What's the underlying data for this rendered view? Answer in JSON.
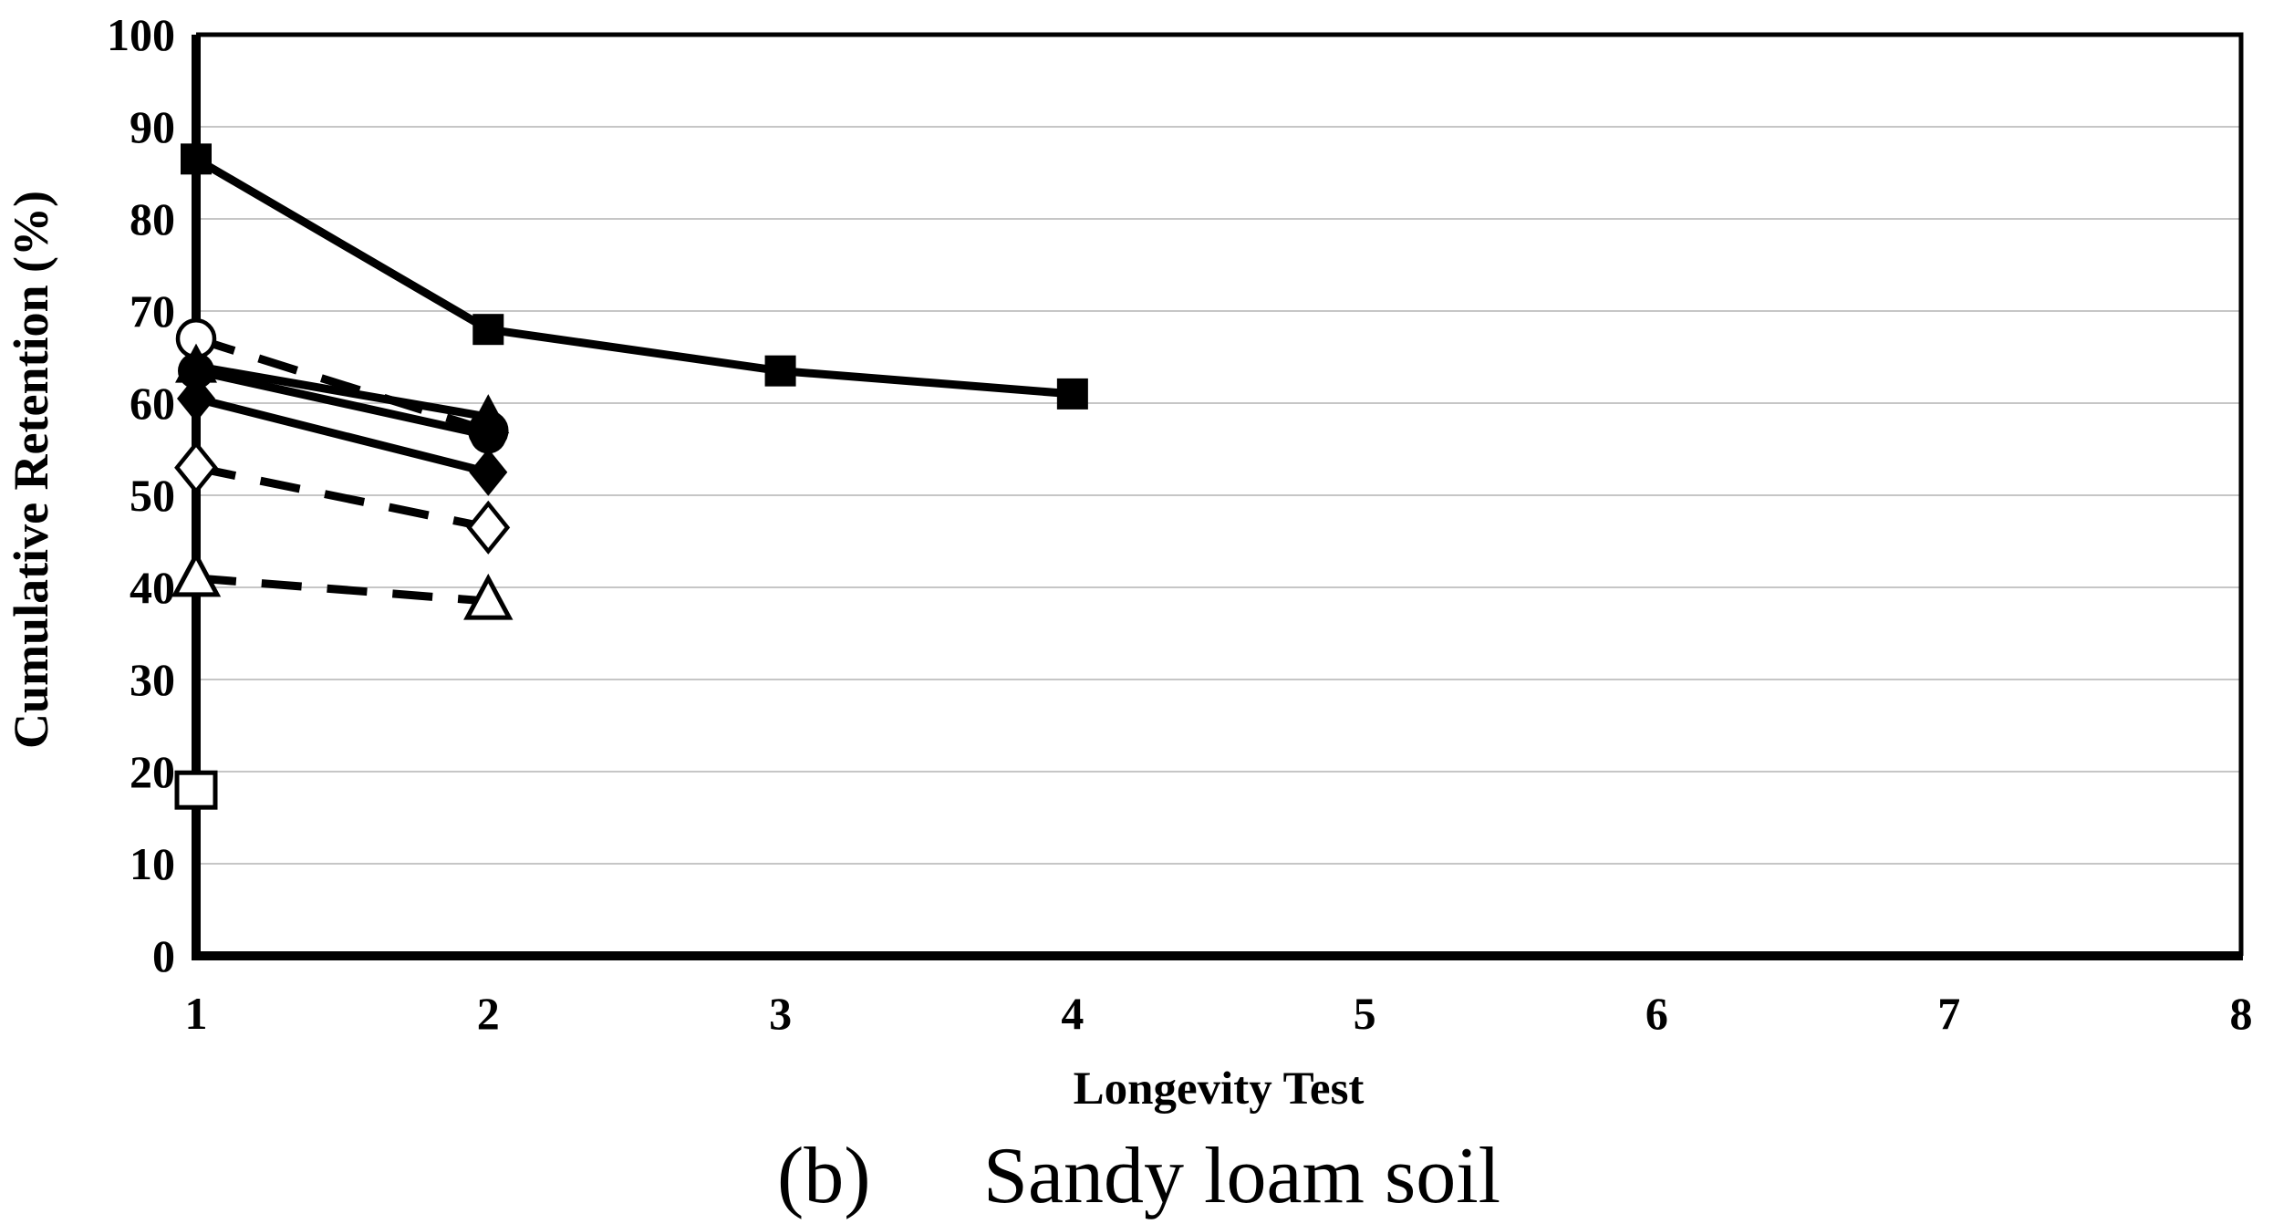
{
  "chart_data": {
    "type": "line",
    "title": "",
    "xlabel": "Longevity Test",
    "ylabel": "Cumulative Retention (%)",
    "caption": {
      "prefix": "(b)",
      "text": "Sandy loam soil"
    },
    "xlim": [
      1,
      8
    ],
    "ylim": [
      0,
      100
    ],
    "x_ticks": [
      1,
      2,
      3,
      4,
      5,
      6,
      7,
      8
    ],
    "y_ticks": [
      0,
      10,
      20,
      30,
      40,
      50,
      60,
      70,
      80,
      90,
      100
    ],
    "grid": "horizontal-only",
    "legend_position": "none",
    "colors": {
      "series": "#000000",
      "grid": "#c6c6c6",
      "background": "#ffffff",
      "axis": "#000000"
    },
    "series": [
      {
        "name": "filled-square-solid",
        "marker": "square-filled",
        "line": "solid",
        "x": [
          1,
          2,
          3,
          4
        ],
        "y": [
          86.5,
          68,
          63.5,
          61
        ]
      },
      {
        "name": "open-circle-dashed",
        "marker": "circle-open",
        "line": "dashed",
        "x": [
          1,
          2
        ],
        "y": [
          67,
          57
        ]
      },
      {
        "name": "filled-triangle-solid",
        "marker": "triangle-filled",
        "line": "solid",
        "x": [
          1,
          2
        ],
        "y": [
          64,
          58.5
        ]
      },
      {
        "name": "filled-circle-solid",
        "marker": "circle-filled",
        "line": "solid",
        "x": [
          1,
          2
        ],
        "y": [
          63.5,
          56.5
        ]
      },
      {
        "name": "filled-diamond-solid",
        "marker": "diamond-filled",
        "line": "solid",
        "x": [
          1,
          2
        ],
        "y": [
          60.5,
          52.5
        ]
      },
      {
        "name": "open-diamond-dashed",
        "marker": "diamond-open",
        "line": "dashed",
        "x": [
          1,
          2
        ],
        "y": [
          53,
          46.5
        ]
      },
      {
        "name": "open-triangle-dashed",
        "marker": "triangle-open",
        "line": "dashed",
        "x": [
          1,
          2
        ],
        "y": [
          41,
          38.5
        ]
      },
      {
        "name": "open-square-point",
        "marker": "square-open",
        "line": "none",
        "x": [
          1
        ],
        "y": [
          18
        ]
      }
    ]
  }
}
